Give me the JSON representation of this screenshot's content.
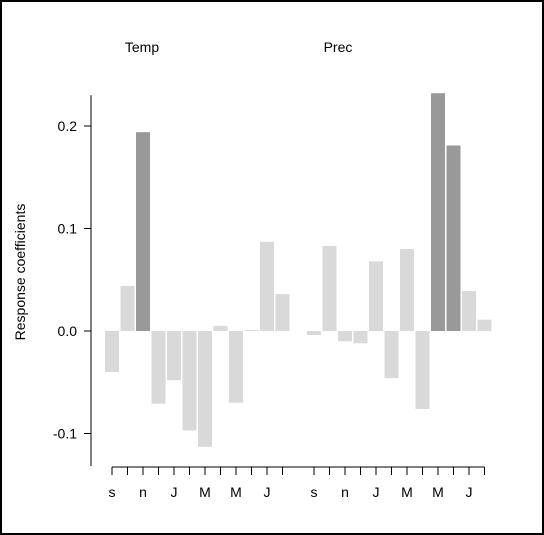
{
  "chart_data": {
    "type": "bar",
    "ylabel": "Response coefficients",
    "ylim": [
      -0.12,
      0.23
    ],
    "yticks": [
      -0.1,
      0.0,
      0.1,
      0.2
    ],
    "ytick_labels": [
      "-0.1",
      "0.0",
      "0.1",
      "0.2"
    ],
    "grid": false,
    "legend": "none",
    "colors": {
      "not_significant": "#d9d9d9",
      "significant": "#999999"
    },
    "panels": [
      {
        "title": "Temp",
        "values": [
          -0.04,
          0.044,
          0.194,
          -0.071,
          -0.048,
          -0.097,
          -0.113,
          0.005,
          -0.07,
          0.001,
          0.087,
          0.036
        ],
        "significant": [
          false,
          false,
          true,
          false,
          false,
          false,
          false,
          false,
          false,
          false,
          false,
          false
        ],
        "x_labels": [
          "s",
          "",
          "n",
          "",
          "J",
          "",
          "M",
          "",
          "M",
          "",
          "J",
          ""
        ]
      },
      {
        "title": "Prec",
        "values": [
          -0.004,
          0.083,
          -0.01,
          -0.012,
          0.068,
          -0.046,
          0.08,
          -0.076,
          0.232,
          0.181,
          0.039,
          0.011
        ],
        "significant": [
          false,
          false,
          false,
          false,
          false,
          false,
          false,
          false,
          true,
          true,
          false,
          false
        ],
        "x_labels": [
          "s",
          "",
          "n",
          "",
          "J",
          "",
          "M",
          "",
          "M",
          "",
          "J",
          ""
        ]
      }
    ]
  }
}
